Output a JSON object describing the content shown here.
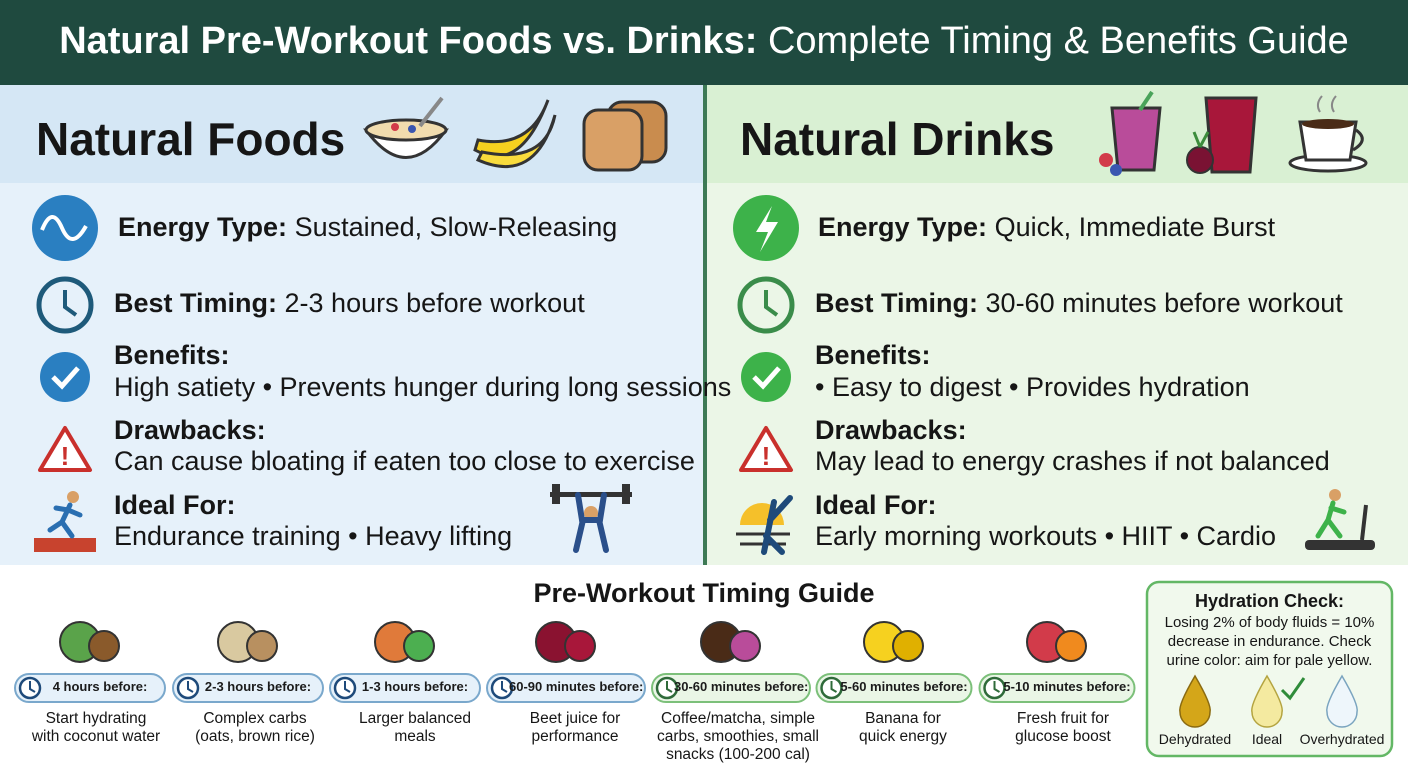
{
  "header": {
    "title_bold": "Natural Pre-Workout Foods vs. Drinks:",
    "title_rest": "Complete Timing & Benefits Guide"
  },
  "panels": [
    {
      "heading": "Natural Foods",
      "rows": [
        {
          "label": "Energy Type:",
          "value": "Sustained, Slow-Releasing"
        },
        {
          "label": "Best Timing:",
          "value": "2-3 hours before workout"
        },
        {
          "label": "Benefits:",
          "value": "High satiety • Prevents hunger during long sessions"
        },
        {
          "label": "Drawbacks:",
          "value": "Can cause bloating if eaten too close to exercise"
        },
        {
          "label": "Ideal For:",
          "value": "Endurance training • Heavy lifting"
        }
      ]
    },
    {
      "heading": "Natural Drinks",
      "rows": [
        {
          "label": "Energy Type:",
          "value": "Quick, Immediate Burst"
        },
        {
          "label": "Best Timing:",
          "value": "30-60 minutes before workout"
        },
        {
          "label": "Benefits:",
          "value": "• Easy to digest • Provides hydration"
        },
        {
          "label": "Drawbacks:",
          "value": "May lead to energy crashes if not balanced"
        },
        {
          "label": "Ideal For:",
          "value": "Early morning workouts • HIIT • Cardio"
        }
      ]
    }
  ],
  "timing_guide": {
    "title": "Pre-Workout Timing Guide",
    "steps": [
      {
        "time": "4 hours before:",
        "lines": [
          "Start hydrating",
          "with coconut water"
        ]
      },
      {
        "time": "2-3 hours before:",
        "lines": [
          "Complex carbs",
          "(oats, brown rice)"
        ]
      },
      {
        "time": "1-3 hours before:",
        "lines": [
          "Larger balanced",
          "meals"
        ]
      },
      {
        "time": "60-90 minutes before:",
        "lines": [
          "Beet juice for",
          "performance"
        ]
      },
      {
        "time": "30-60 minutes before:",
        "lines": [
          "Coffee/matcha, simple",
          "carbs, smoothies, small",
          "snacks (100-200 cal)"
        ]
      },
      {
        "time": "5-60 minutes before:",
        "lines": [
          "Banana for",
          "quick energy"
        ]
      },
      {
        "time": "5-10 minutes before:",
        "lines": [
          "Fresh fruit for",
          "glucose boost"
        ]
      }
    ]
  },
  "hydration": {
    "title": "Hydration Check:",
    "lines": [
      "Losing 2% of body fluids = 10%",
      "decrease in endurance. Check",
      "urine color: aim for pale yellow."
    ],
    "levels": [
      "Dehydrated",
      "Ideal",
      "Overhydrated"
    ]
  }
}
